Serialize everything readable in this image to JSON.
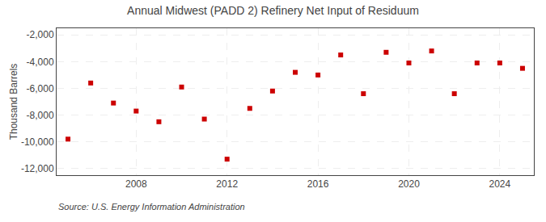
{
  "chart_data": {
    "type": "scatter",
    "title": "Annual Midwest (PADD 2) Refinery Net Input of Residuum",
    "ylabel": "Thousand Barrels",
    "annotations": [
      "Source: U.S. Energy Information Administration"
    ],
    "x": [
      2005,
      2006,
      2007,
      2008,
      2009,
      2010,
      2011,
      2012,
      2013,
      2014,
      2015,
      2016,
      2017,
      2018,
      2019,
      2020,
      2021,
      2022,
      2023,
      2024,
      2025
    ],
    "values": [
      -9800,
      -5600,
      -7100,
      -7700,
      -8500,
      -5900,
      -8300,
      -11300,
      -7500,
      -6200,
      -4800,
      -5000,
      -3500,
      -6400,
      -3300,
      -4100,
      -3200,
      -6400,
      -4100,
      -4100,
      -4500
    ],
    "color": "#cc0000",
    "marker": "square",
    "xlim": [
      2004.5,
      2025.5
    ],
    "xticks": [
      2008,
      2012,
      2016,
      2020,
      2024
    ],
    "ylim": [
      -12500,
      -1500
    ],
    "yticks": [
      {
        "value": -12000,
        "label": "-12,000"
      },
      {
        "value": -10000,
        "label": "-10,000"
      },
      {
        "value": -8000,
        "label": "-8,000"
      },
      {
        "value": -6000,
        "label": "-6,000"
      },
      {
        "value": -4000,
        "label": "-4,000"
      },
      {
        "value": -2000,
        "label": "-2,000"
      }
    ],
    "grid": true
  }
}
